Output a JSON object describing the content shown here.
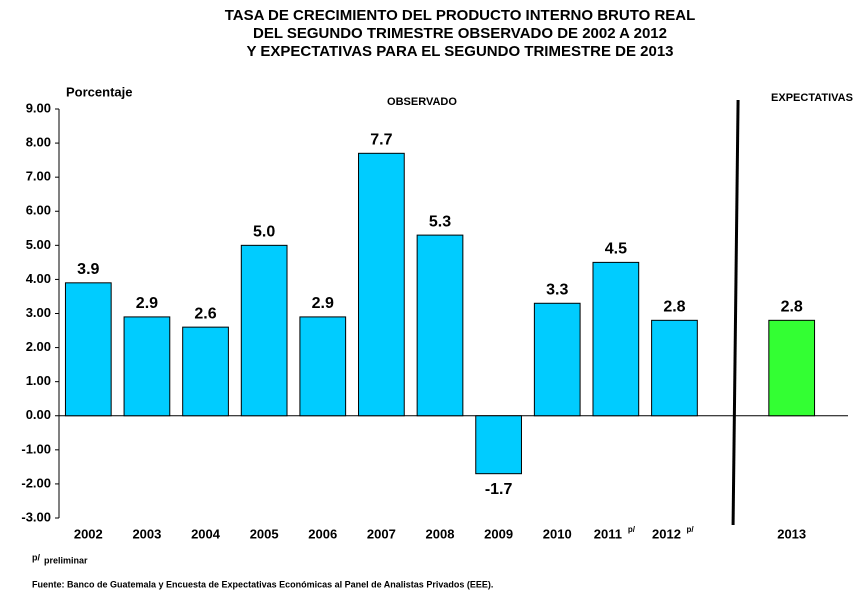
{
  "chart_data": {
    "type": "bar",
    "title_lines": [
      "TASA DE CRECIMIENTO DEL PRODUCTO INTERNO BRUTO REAL",
      "DEL SEGUNDO TRIMESTRE OBSERVADO DE  2002 A 2012",
      "Y EXPECTATIVAS PARA EL SEGUNDO TRIMESTRE  DE  2013"
    ],
    "y_label": "Porcentaje",
    "annotations": [
      "OBSERVADO",
      "EXPECTATIVAS"
    ],
    "categories": [
      "2002",
      "2003",
      "2004",
      "2005",
      "2006",
      "2007",
      "2008",
      "2009",
      "2010",
      "2011",
      "2012",
      null,
      "2013"
    ],
    "category_superscripts": [
      null,
      null,
      null,
      null,
      null,
      null,
      null,
      null,
      null,
      "p/",
      "p/",
      null,
      null
    ],
    "values": [
      3.9,
      2.9,
      2.6,
      5.0,
      2.9,
      7.7,
      5.3,
      -1.7,
      3.3,
      4.5,
      2.8,
      null,
      2.8
    ],
    "value_labels": [
      "3.9",
      "2.9",
      "2.6",
      "5.0",
      "2.9",
      "7.7",
      "5.3",
      "-1.7",
      "3.3",
      "4.5",
      "2.8",
      null,
      "2.8"
    ],
    "colors": [
      "#00ccff",
      "#00ccff",
      "#00ccff",
      "#00ccff",
      "#00ccff",
      "#00ccff",
      "#00ccff",
      "#00ccff",
      "#00ccff",
      "#00ccff",
      "#00ccff",
      null,
      "#33ff33"
    ],
    "ylim": [
      -3,
      9
    ],
    "yticks": [
      {
        "value": -3,
        "label": "-3.00"
      },
      {
        "value": -2,
        "label": "-2.00"
      },
      {
        "value": -1,
        "label": "-1.00"
      },
      {
        "value": 0,
        "label": "0.00"
      },
      {
        "value": 1,
        "label": "1.00"
      },
      {
        "value": 2,
        "label": "2.00"
      },
      {
        "value": 3,
        "label": "3.00"
      },
      {
        "value": 4,
        "label": "4.00"
      },
      {
        "value": 5,
        "label": "5.00"
      },
      {
        "value": 6,
        "label": "6.00"
      },
      {
        "value": 7,
        "label": "7.00"
      },
      {
        "value": 8,
        "label": "8.00"
      },
      {
        "value": 9,
        "label": "9.00"
      }
    ],
    "footnote": {
      "superscript": "p/",
      "text": "preliminar"
    },
    "source": "Fuente:  Banco de Guatemala y Encuesta de Expectativas Económicas al Panel de Analistas Privados (EEE)."
  }
}
